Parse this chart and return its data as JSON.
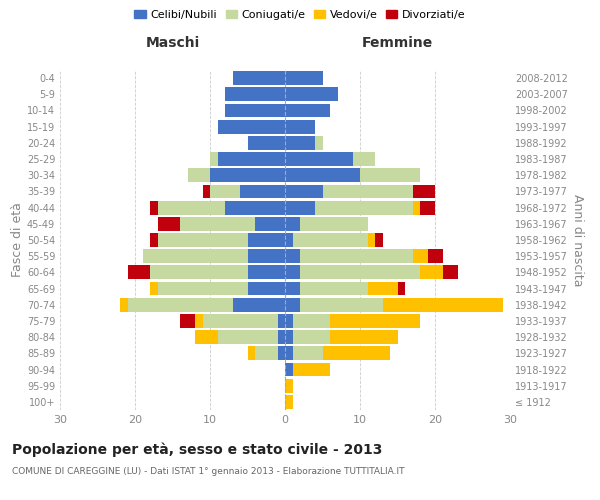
{
  "age_groups": [
    "100+",
    "95-99",
    "90-94",
    "85-89",
    "80-84",
    "75-79",
    "70-74",
    "65-69",
    "60-64",
    "55-59",
    "50-54",
    "45-49",
    "40-44",
    "35-39",
    "30-34",
    "25-29",
    "20-24",
    "15-19",
    "10-14",
    "5-9",
    "0-4"
  ],
  "birth_years": [
    "≤ 1912",
    "1913-1917",
    "1918-1922",
    "1923-1927",
    "1928-1932",
    "1933-1937",
    "1938-1942",
    "1943-1947",
    "1948-1952",
    "1953-1957",
    "1958-1962",
    "1963-1967",
    "1968-1972",
    "1973-1977",
    "1978-1982",
    "1983-1987",
    "1988-1992",
    "1993-1997",
    "1998-2002",
    "2003-2007",
    "2008-2012"
  ],
  "males": {
    "celibe": [
      0,
      0,
      0,
      1,
      1,
      1,
      7,
      5,
      5,
      5,
      5,
      4,
      8,
      6,
      10,
      9,
      5,
      9,
      8,
      8,
      7
    ],
    "coniugato": [
      0,
      0,
      0,
      3,
      8,
      10,
      14,
      12,
      13,
      14,
      12,
      10,
      9,
      4,
      3,
      1,
      0,
      0,
      0,
      0,
      0
    ],
    "vedovo": [
      0,
      0,
      0,
      1,
      3,
      1,
      1,
      1,
      0,
      0,
      0,
      0,
      0,
      0,
      0,
      0,
      0,
      0,
      0,
      0,
      0
    ],
    "divorziato": [
      0,
      0,
      0,
      0,
      0,
      2,
      0,
      0,
      3,
      0,
      1,
      3,
      1,
      1,
      0,
      0,
      0,
      0,
      0,
      0,
      0
    ]
  },
  "females": {
    "nubile": [
      0,
      0,
      1,
      1,
      1,
      1,
      2,
      2,
      2,
      2,
      1,
      2,
      4,
      5,
      10,
      9,
      4,
      4,
      6,
      7,
      5
    ],
    "coniugata": [
      0,
      0,
      0,
      4,
      5,
      5,
      11,
      9,
      16,
      15,
      10,
      9,
      13,
      12,
      8,
      3,
      1,
      0,
      0,
      0,
      0
    ],
    "vedova": [
      1,
      1,
      5,
      9,
      9,
      12,
      16,
      4,
      3,
      2,
      1,
      0,
      1,
      0,
      0,
      0,
      0,
      0,
      0,
      0,
      0
    ],
    "divorziata": [
      0,
      0,
      0,
      0,
      0,
      0,
      0,
      1,
      2,
      2,
      1,
      0,
      2,
      3,
      0,
      0,
      0,
      0,
      0,
      0,
      0
    ]
  },
  "colors": {
    "celibe": "#4472c4",
    "coniugato": "#c5d9a0",
    "vedovo": "#ffc000",
    "divorziato": "#c0000c"
  },
  "xlim": 30,
  "title": "Popolazione per età, sesso e stato civile - 2013",
  "subtitle": "COMUNE DI CAREGGINE (LU) - Dati ISTAT 1° gennaio 2013 - Elaborazione TUTTITALIA.IT",
  "ylabel_left": "Fasce di età",
  "ylabel_right": "Anni di nascita",
  "xlabel_left": "Maschi",
  "xlabel_right": "Femmine",
  "bg_color": "#ffffff",
  "grid_color": "#cccccc",
  "bar_height": 0.85
}
